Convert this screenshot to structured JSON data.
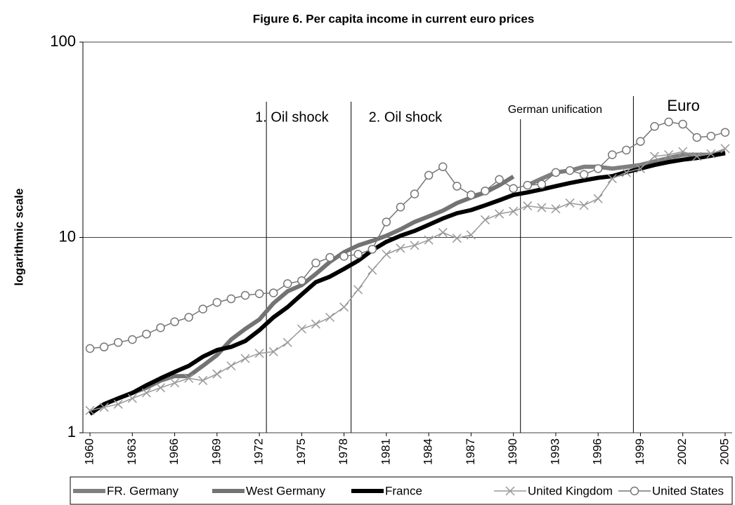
{
  "chart_data": {
    "type": "line",
    "title": "Figure 6. Per capita income in current euro prices",
    "y_label": "logarithmic scale",
    "log_scale": true,
    "grid": true,
    "x": [
      1960,
      1961,
      1962,
      1963,
      1964,
      1965,
      1966,
      1967,
      1968,
      1969,
      1970,
      1971,
      1972,
      1973,
      1974,
      1975,
      1976,
      1977,
      1978,
      1979,
      1980,
      1981,
      1982,
      1983,
      1984,
      1985,
      1986,
      1987,
      1988,
      1989,
      1990,
      1991,
      1992,
      1993,
      1994,
      1995,
      1996,
      1997,
      1998,
      1999,
      2000,
      2001,
      2002,
      2003,
      2004,
      2005
    ],
    "xlim": [
      1959.5,
      2005.5
    ],
    "xticks": [
      1960,
      1963,
      1966,
      1969,
      1972,
      1975,
      1978,
      1981,
      1984,
      1987,
      1990,
      1993,
      1996,
      1999,
      2002,
      2005
    ],
    "ylim": [
      1,
      100
    ],
    "yticks": [
      1,
      10,
      100
    ],
    "annotations": [
      {
        "text": "1. Oil shock",
        "x": 1972.5
      },
      {
        "text": "2. Oil shock",
        "x": 1978.5
      },
      {
        "text": "German unification",
        "x": 1990.5
      },
      {
        "text": "Euro",
        "x": 1998.5
      }
    ],
    "series": [
      {
        "name": "FR. Germany",
        "color": "#7f7f7f",
        "marker": "none",
        "values": [
          null,
          null,
          null,
          null,
          null,
          null,
          null,
          null,
          null,
          null,
          null,
          null,
          null,
          null,
          null,
          null,
          null,
          null,
          null,
          null,
          null,
          null,
          null,
          null,
          null,
          null,
          null,
          null,
          null,
          null,
          null,
          18.5,
          20,
          21.5,
          22,
          23,
          23,
          22.5,
          23,
          23.5,
          24.5,
          25.5,
          26.5,
          26.5,
          26.5,
          27.5
        ]
      },
      {
        "name": "West Germany",
        "color": "#737373",
        "marker": "none",
        "values": [
          1.25,
          1.4,
          1.5,
          1.6,
          1.7,
          1.85,
          1.95,
          1.95,
          2.2,
          2.5,
          3.0,
          3.4,
          3.8,
          4.6,
          5.3,
          5.7,
          6.5,
          7.5,
          8.4,
          9.1,
          9.6,
          10.2,
          11.0,
          12.0,
          12.8,
          13.7,
          15.0,
          16.0,
          17.0,
          18.5,
          20.5,
          null,
          null,
          null,
          null,
          null,
          null,
          null,
          null,
          null,
          null,
          null,
          null,
          null,
          null,
          null
        ]
      },
      {
        "name": "France",
        "color": "#000000",
        "marker": "none",
        "values": [
          1.25,
          1.4,
          1.5,
          1.6,
          1.75,
          1.9,
          2.05,
          2.2,
          2.45,
          2.65,
          2.75,
          2.95,
          3.35,
          3.9,
          4.4,
          5.1,
          5.9,
          6.3,
          6.9,
          7.6,
          8.6,
          9.5,
          10.2,
          10.8,
          11.6,
          12.5,
          13.3,
          13.8,
          14.6,
          15.5,
          16.5,
          17.0,
          17.6,
          18.3,
          19.0,
          19.6,
          20.2,
          20.6,
          21.6,
          22.5,
          23.5,
          24.3,
          25.0,
          25.5,
          26.2,
          27.0
        ]
      },
      {
        "name": "United Kingdom",
        "color": "#999999",
        "marker": "x",
        "values": [
          1.3,
          1.35,
          1.4,
          1.5,
          1.6,
          1.7,
          1.8,
          1.9,
          1.85,
          2.0,
          2.2,
          2.4,
          2.55,
          2.6,
          2.9,
          3.4,
          3.6,
          3.9,
          4.4,
          5.4,
          6.8,
          8.2,
          8.8,
          9.1,
          9.7,
          10.6,
          9.9,
          10.3,
          12.3,
          13.2,
          13.6,
          14.5,
          14.2,
          14.0,
          15.0,
          14.6,
          15.8,
          20,
          21.5,
          22.5,
          26,
          26.5,
          27.5,
          26,
          26.8,
          28.5
        ]
      },
      {
        "name": "United States",
        "color": "#777777",
        "marker": "circle",
        "values": [
          2.7,
          2.75,
          2.9,
          3.0,
          3.2,
          3.45,
          3.7,
          3.9,
          4.3,
          4.65,
          4.85,
          5.05,
          5.15,
          5.2,
          5.8,
          6.0,
          7.4,
          7.9,
          8.0,
          8.2,
          8.7,
          12.0,
          14.3,
          16.7,
          20.8,
          23,
          18.3,
          16.5,
          17.3,
          19.8,
          17.8,
          18.5,
          18.7,
          21.5,
          22,
          21,
          22.5,
          26.5,
          28,
          31,
          37,
          39,
          38,
          32.5,
          33,
          34.5
        ]
      }
    ]
  }
}
